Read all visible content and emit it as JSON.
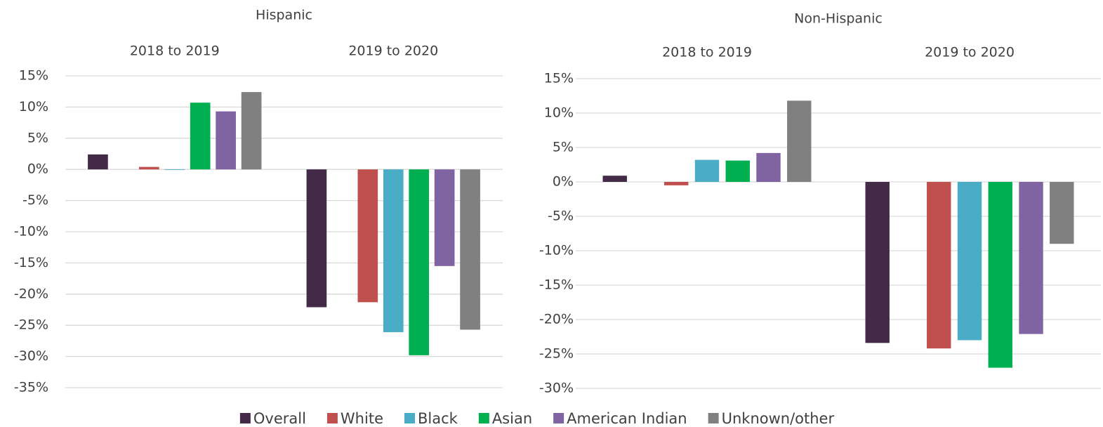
{
  "chart_data": [
    {
      "type": "bar",
      "title": "Hispanic",
      "categories": [
        "2018 to 2019",
        "2019 to 2020"
      ],
      "series": [
        {
          "name": "Overall",
          "color": "#432a47",
          "values": [
            2.4,
            -22.1
          ]
        },
        {
          "name": "White",
          "color": "#c0504d",
          "values": [
            0.4,
            -21.3
          ]
        },
        {
          "name": "Black",
          "color": "#4bacc6",
          "values": [
            -0.1,
            -26.1
          ]
        },
        {
          "name": "Asian",
          "color": "#00b050",
          "values": [
            10.7,
            -29.8
          ]
        },
        {
          "name": "American Indian",
          "color": "#8064a2",
          "values": [
            9.3,
            -15.5
          ]
        },
        {
          "name": "Unknown/other",
          "color": "#808080",
          "values": [
            12.4,
            -25.7
          ]
        }
      ],
      "ylim": [
        -35,
        15
      ],
      "yticks": [
        {
          "value": -35,
          "label": "-35%"
        },
        {
          "value": -30,
          "label": "-30%"
        },
        {
          "value": -25,
          "label": "-25%"
        },
        {
          "value": -20,
          "label": "-20%"
        },
        {
          "value": -15,
          "label": "-15%"
        },
        {
          "value": -10,
          "label": "-10%"
        },
        {
          "value": -5,
          "label": "-5%"
        },
        {
          "value": 0,
          "label": "0%"
        },
        {
          "value": 5,
          "label": "5%"
        },
        {
          "value": 10,
          "label": "10%"
        },
        {
          "value": 15,
          "label": "15%"
        }
      ],
      "grid": true
    },
    {
      "type": "bar",
      "title": "Non-Hispanic",
      "categories": [
        "2018 to 2019",
        "2019 to 2020"
      ],
      "series": [
        {
          "name": "Overall",
          "color": "#432a47",
          "values": [
            0.9,
            -23.4
          ]
        },
        {
          "name": "White",
          "color": "#c0504d",
          "values": [
            -0.5,
            -24.2
          ]
        },
        {
          "name": "Black",
          "color": "#4bacc6",
          "values": [
            3.2,
            -23.0
          ]
        },
        {
          "name": "Asian",
          "color": "#00b050",
          "values": [
            3.1,
            -27.0
          ]
        },
        {
          "name": "American Indian",
          "color": "#8064a2",
          "values": [
            4.2,
            -22.1
          ]
        },
        {
          "name": "Unknown/other",
          "color": "#808080",
          "values": [
            11.8,
            -9.0
          ]
        }
      ],
      "ylim": [
        -30,
        15
      ],
      "yticks": [
        {
          "value": -30,
          "label": "-30%"
        },
        {
          "value": -25,
          "label": "-25%"
        },
        {
          "value": -20,
          "label": "-20%"
        },
        {
          "value": -15,
          "label": "-15%"
        },
        {
          "value": -10,
          "label": "-10%"
        },
        {
          "value": -5,
          "label": "-5%"
        },
        {
          "value": 0,
          "label": "0%"
        },
        {
          "value": 5,
          "label": "5%"
        },
        {
          "value": 10,
          "label": "10%"
        },
        {
          "value": 15,
          "label": "15%"
        }
      ],
      "grid": true
    }
  ]
}
